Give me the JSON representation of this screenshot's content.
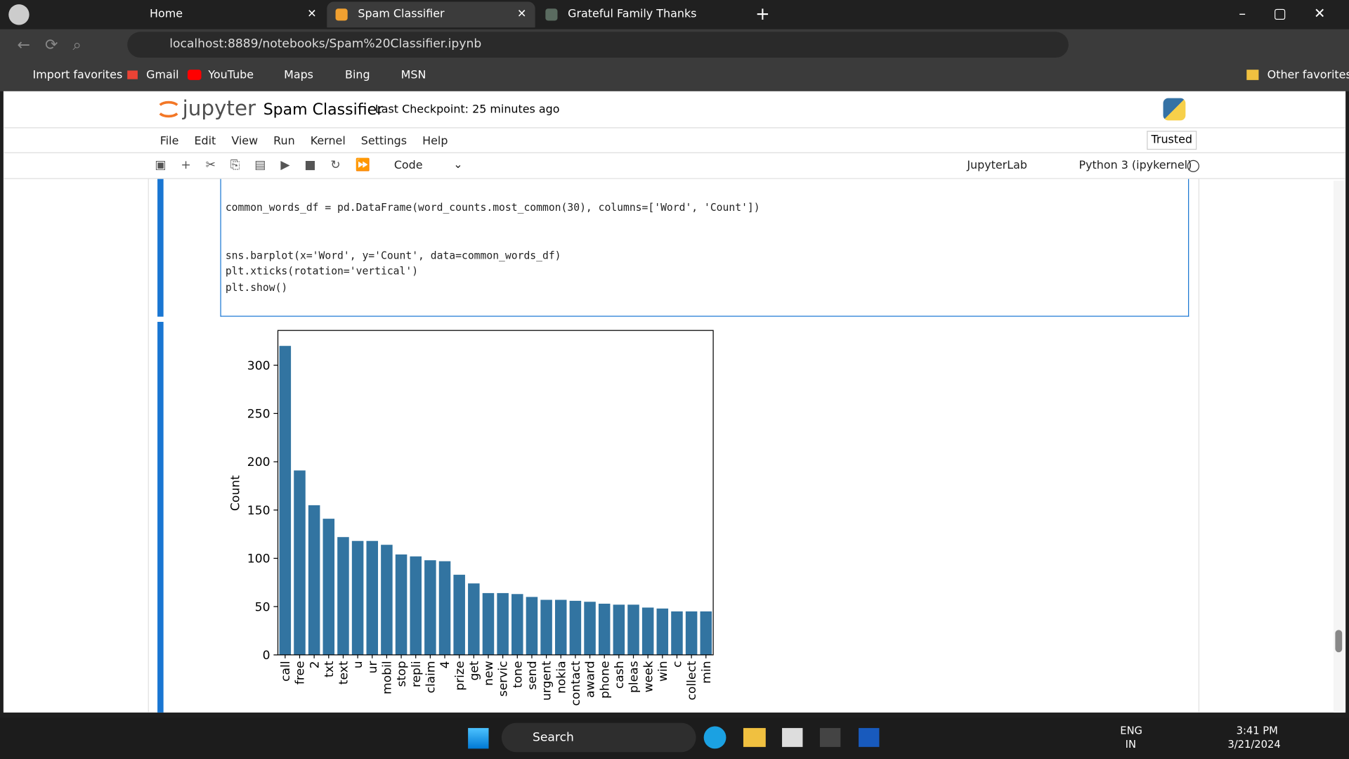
{
  "browser": {
    "tabs": [
      "Home",
      "Spam Classifier",
      "Grateful Family Thanks Babysitter"
    ],
    "url": "localhost:8889/notebooks/Spam%20Classifier.ipynb",
    "favorites": [
      "Import favorites",
      "Gmail",
      "YouTube",
      "Maps",
      "Bing",
      "MSN"
    ],
    "other_favorites": "Other favorites"
  },
  "jupyter": {
    "logo": "jupyter",
    "title": "Spam Classifier",
    "checkpoint": "Last Checkpoint: 25 minutes ago",
    "menu": [
      "File",
      "Edit",
      "View",
      "Run",
      "Kernel",
      "Settings",
      "Help"
    ],
    "trusted": "Trusted",
    "cell_type": "Code",
    "jupyterlab": "JupyterLab",
    "kernel": "Python 3 (ipykernel)",
    "code": [
      "common_words_df = pd.DataFrame(word_counts.most_common(30), columns=['Word', 'Count'])",
      "sns.barplot(x='Word', y='Count', data=common_words_df)",
      "plt.xticks(rotation='vertical')",
      "plt.show()"
    ]
  },
  "chart_data": {
    "type": "bar",
    "ylabel": "Count",
    "color": "#3274a1",
    "categories": [
      "call",
      "free",
      "2",
      "txt",
      "text",
      "u",
      "ur",
      "mobil",
      "stop",
      "repli",
      "claim",
      "4",
      "prize",
      "get",
      "new",
      "servic",
      "tone",
      "send",
      "urgent",
      "nokia",
      "contact",
      "award",
      "phone",
      "cash",
      "pleas",
      "week",
      "win",
      "c",
      "collect",
      "min"
    ],
    "values": [
      320,
      191,
      155,
      141,
      122,
      118,
      118,
      114,
      104,
      102,
      98,
      97,
      83,
      74,
      64,
      64,
      63,
      60,
      57,
      57,
      56,
      55,
      53,
      52,
      52,
      49,
      48,
      45,
      45,
      45
    ],
    "ylim": [
      0,
      336
    ],
    "yticks": [
      0,
      50,
      100,
      150,
      200,
      250,
      300
    ]
  },
  "taskbar": {
    "search": "Search",
    "lang": [
      "ENG",
      "IN"
    ],
    "time": "3:41 PM",
    "date": "3/21/2024"
  }
}
